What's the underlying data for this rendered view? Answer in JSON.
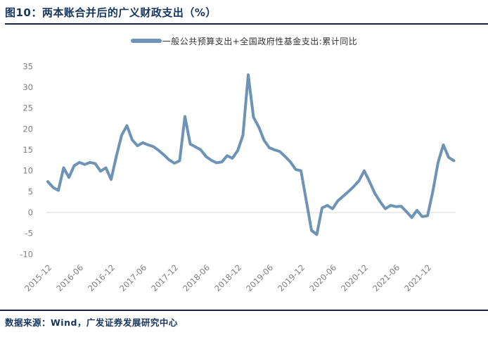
{
  "header": {
    "title": "图10：两本账合并后的广义财政支出（%）"
  },
  "legend": {
    "label": "一般公共预算支出+全国政府性基金支出:累计同比"
  },
  "footer": {
    "source": "数据来源：Wind，广发证券发展研究中心"
  },
  "colors": {
    "title_navy": "#17365D",
    "rule_navy": "#142440",
    "series_line": "#6D93B6",
    "axis_text_gray": "#7F7F7F",
    "zero_gridline_gray": "#D9D9D9"
  },
  "chart_data": {
    "type": "line",
    "title": "图10：两本账合并后的广义财政支出（%）",
    "ylabel": "",
    "xlabel": "",
    "ylim": [
      -10,
      35
    ],
    "y_ticks": [
      35,
      30,
      25,
      20,
      15,
      10,
      5,
      0,
      -5,
      -10
    ],
    "grid": "zero-line-only",
    "legend_position": "top-center",
    "x_tick_labels": [
      "2015-12",
      "2016-06",
      "2016-12",
      "2017-06",
      "2017-12",
      "2018-06",
      "2018-12",
      "2019-06",
      "2019-12",
      "2020-06",
      "2020-12",
      "2021-06",
      "2021-12"
    ],
    "x": [
      "2015-12",
      "2016-01",
      "2016-02",
      "2016-03",
      "2016-04",
      "2016-05",
      "2016-06",
      "2016-07",
      "2016-08",
      "2016-09",
      "2016-10",
      "2016-11",
      "2016-12",
      "2017-01",
      "2017-02",
      "2017-03",
      "2017-04",
      "2017-05",
      "2017-06",
      "2017-07",
      "2017-08",
      "2017-09",
      "2017-10",
      "2017-11",
      "2017-12",
      "2018-01",
      "2018-02",
      "2018-03",
      "2018-04",
      "2018-05",
      "2018-06",
      "2018-07",
      "2018-08",
      "2018-09",
      "2018-10",
      "2018-11",
      "2018-12",
      "2019-01",
      "2019-02",
      "2019-03",
      "2019-04",
      "2019-05",
      "2019-06",
      "2019-07",
      "2019-08",
      "2019-09",
      "2019-10",
      "2019-11",
      "2019-12",
      "2020-01",
      "2020-02",
      "2020-03",
      "2020-04",
      "2020-05",
      "2020-06",
      "2020-07",
      "2020-08",
      "2020-09",
      "2020-10",
      "2020-11",
      "2020-12",
      "2021-01",
      "2021-02",
      "2021-03",
      "2021-04",
      "2021-05",
      "2021-06",
      "2021-07",
      "2021-08",
      "2021-09",
      "2021-10",
      "2021-11",
      "2021-12",
      "2022-01",
      "2022-02",
      "2022-03",
      "2022-04",
      "2022-05"
    ],
    "series": [
      {
        "name": "一般公共预算支出+全国政府性基金支出:累计同比",
        "color": "#6D93B6",
        "values": [
          7.4,
          6.0,
          5.3,
          10.7,
          8.4,
          11.2,
          12.0,
          11.5,
          12.0,
          11.7,
          9.9,
          10.7,
          7.9,
          13.5,
          18.5,
          20.8,
          17.4,
          16.0,
          16.7,
          16.2,
          15.8,
          14.9,
          13.8,
          12.6,
          11.8,
          12.4,
          23.0,
          16.4,
          15.7,
          15.0,
          13.4,
          12.5,
          11.9,
          12.1,
          13.6,
          13.0,
          14.8,
          18.5,
          33.0,
          22.8,
          20.5,
          17.3,
          15.5,
          15.0,
          14.6,
          13.4,
          12.1,
          10.3,
          10.0,
          2.9,
          -4.3,
          -5.3,
          1.1,
          1.7,
          0.9,
          2.8,
          3.9,
          5.0,
          6.2,
          7.6,
          10.0,
          7.4,
          4.6,
          2.6,
          0.9,
          1.7,
          1.4,
          1.5,
          0.2,
          -1.2,
          0.5,
          -1.0,
          -0.8,
          5.0,
          12.0,
          16.2,
          13.2,
          12.4
        ]
      }
    ]
  }
}
